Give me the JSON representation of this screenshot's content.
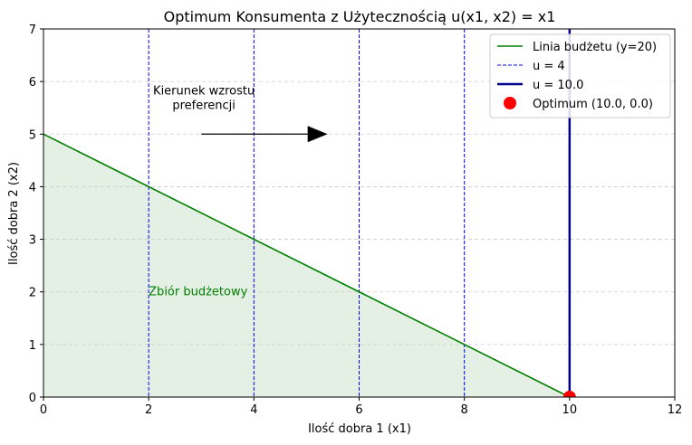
{
  "chart_data": {
    "type": "line",
    "title": "Optimum Konsumenta z Użytecznością u(x1, x2) = x1",
    "xlabel": "Ilość dobra 1 (x1)",
    "ylabel": "Ilość dobra 2 (x2)",
    "xlim": [
      0,
      12
    ],
    "ylim": [
      0,
      7
    ],
    "xticks": [
      "0",
      "2",
      "4",
      "6",
      "8",
      "10",
      "12"
    ],
    "yticks": [
      "0",
      "1",
      "2",
      "3",
      "4",
      "5",
      "6",
      "7"
    ],
    "grid": {
      "y": true,
      "x": false,
      "style": "dashed"
    },
    "legend_position": "top-right",
    "colors": {
      "budget": "#008000",
      "budget_fill": "#e5f0e5",
      "indifference": "#0000ff",
      "optimal_line": "#00008b",
      "optimum": "#ff0000",
      "grid": "#cccccc",
      "arrow": "#000000"
    },
    "budget_line": {
      "name": "Linia budżetu (y=20)",
      "x": [
        0,
        10
      ],
      "y": [
        5,
        0
      ]
    },
    "budget_set_label": "Zbiór budżetowy",
    "indifference_curves": {
      "name": "u = 4",
      "x_values": [
        2,
        4,
        6,
        8
      ]
    },
    "optimal_indifference": {
      "name": "u = 10.0",
      "x": 10
    },
    "optimum_point": {
      "name": "Optimum (10.0, 0.0)",
      "x": 10,
      "y": 0
    },
    "annotation": {
      "text_lines": [
        "Kierunek wzrostu",
        "preferencji"
      ],
      "arrow_from": [
        3,
        5
      ],
      "arrow_to": [
        5.4,
        5
      ]
    }
  }
}
